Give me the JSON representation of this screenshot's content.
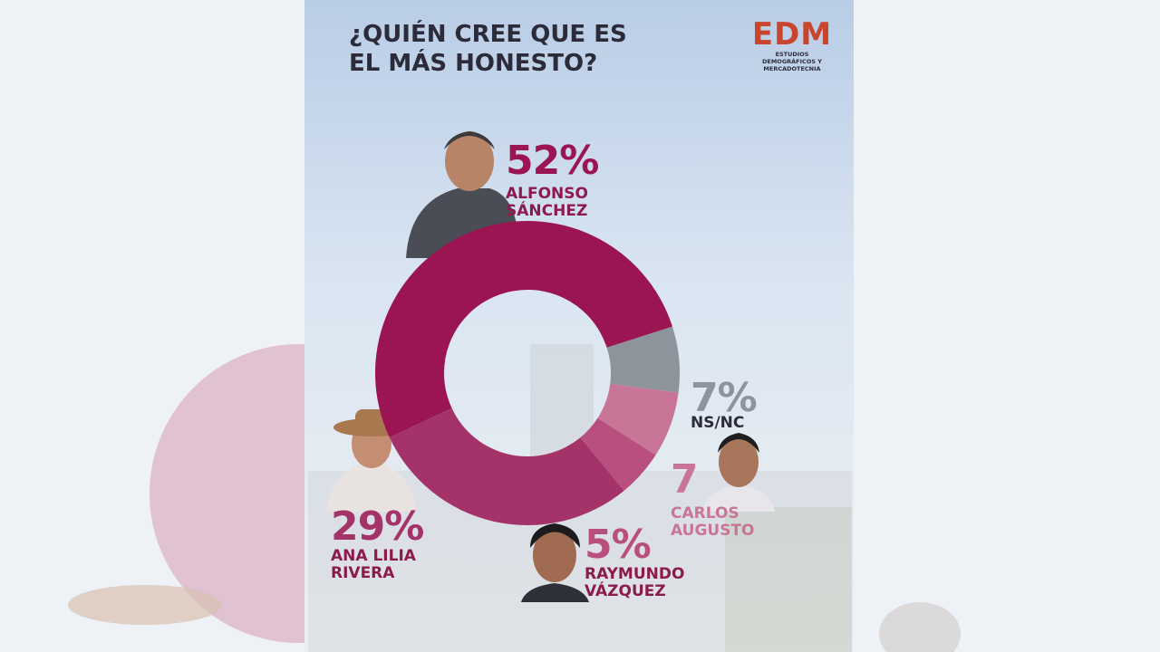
{
  "chart_data": {
    "type": "donut",
    "title": "¿QUIÉN CREE QUE ES EL MÁS HONESTO?",
    "categories": [
      "ALFONSO SÁNCHEZ",
      "NS/NC",
      "CARLOS AUGUSTO",
      "RAYMUNDO VÁZQUEZ",
      "ANA LILIA RIVERA"
    ],
    "values": [
      52,
      7,
      7,
      5,
      29
    ],
    "value_labels": [
      "52%",
      "7%",
      "7",
      "5%",
      "29%"
    ],
    "colors": [
      "#9a1551",
      "#8d949b",
      "#c97598",
      "#b84f7f",
      "#a4336a"
    ]
  },
  "logo": {
    "mark": "EDM",
    "tagline": "ESTUDIOS DEMOGRÁFICOS Y MERCADOTECNIA"
  }
}
